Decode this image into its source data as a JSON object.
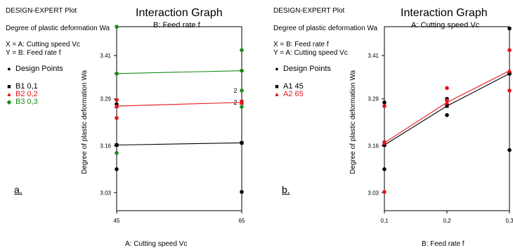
{
  "chart_data": [
    {
      "type": "line",
      "panel_tag": "a.",
      "software": "DESIGN-EXPERT Plot",
      "response": "Degree of plastic deformation Wa",
      "x_assign": "X = A: Cutting speed Vc",
      "y_assign": "Y = B: Feed rate f",
      "design_points_label": "Design Points",
      "title": "Interaction Graph",
      "subtitle": "B: Feed rate f",
      "xlabel": "A: Cutting speed Vc",
      "ylabel": "Degree of plastic deformation Wa",
      "x": [
        45,
        65
      ],
      "xticks": [
        "45",
        "65"
      ],
      "xlim": [
        45,
        65
      ],
      "ylim": [
        2.98,
        3.49
      ],
      "yticks": [
        "3.03",
        "3.16",
        "3.29",
        "3.41"
      ],
      "ytick_values": [
        3.03,
        3.16,
        3.29,
        3.41
      ],
      "series": [
        {
          "name": "B1 0,1",
          "color": "#000000",
          "marker": "square",
          "values": [
            3.162,
            3.168
          ],
          "points": [
            {
              "x": 45,
              "y": 3.162
            },
            {
              "x": 45,
              "y": 3.095
            },
            {
              "x": 45,
              "y": 3.275
            },
            {
              "x": 65,
              "y": 3.168
            },
            {
              "x": 65,
              "y": 3.032
            }
          ]
        },
        {
          "name": "B2 0,2",
          "color": "#e4151c",
          "marker": "triangle",
          "values": [
            3.27,
            3.28
          ],
          "points": [
            {
              "x": 45,
              "y": 3.287
            },
            {
              "x": 45,
              "y": 3.237
            },
            {
              "x": 65,
              "y": 3.283
            }
          ]
        },
        {
          "name": "B3 0,3",
          "color": "#1a8a1a",
          "marker": "diamond",
          "values": [
            3.36,
            3.368
          ],
          "points": [
            {
              "x": 45,
              "y": 3.36
            },
            {
              "x": 45,
              "y": 3.14
            },
            {
              "x": 45,
              "y": 3.49
            },
            {
              "x": 65,
              "y": 3.368
            },
            {
              "x": 65,
              "y": 3.425
            },
            {
              "x": 65,
              "y": 3.313
            },
            {
              "x": 65,
              "y": 3.268
            }
          ]
        }
      ],
      "annotations": [
        {
          "text": "2",
          "x": 65,
          "y": 3.313
        },
        {
          "text": "2",
          "x": 65,
          "y": 3.28
        }
      ],
      "legend_position": "left"
    },
    {
      "type": "line",
      "panel_tag": "b.",
      "software": "DESIGN-EXPERT Plot",
      "response": "Degree of plastic deformation Wa",
      "x_assign": "X = B: Feed rate f",
      "y_assign": "Y = A: Cutting speed Vc",
      "design_points_label": "Design Points",
      "title": "Interaction Graph",
      "subtitle": "A: Cutting speed Vc",
      "xlabel": "B: Feed rate f",
      "ylabel": "Degree of plastic deformation Wa",
      "x": [
        0.1,
        0.2,
        0.3
      ],
      "xticks": [
        "0,1",
        "0,2",
        "0,3"
      ],
      "xlim": [
        0.1,
        0.3
      ],
      "ylim": [
        2.98,
        3.49
      ],
      "yticks": [
        "3.03",
        "3.16",
        "3.29",
        "3.41"
      ],
      "ytick_values": [
        3.03,
        3.16,
        3.29,
        3.41
      ],
      "series": [
        {
          "name": "A1 45",
          "color": "#000000",
          "marker": "square",
          "values": [
            3.162,
            3.27,
            3.36
          ],
          "points": [
            {
              "x": 0.1,
              "y": 3.162
            },
            {
              "x": 0.1,
              "y": 3.095
            },
            {
              "x": 0.1,
              "y": 3.28
            },
            {
              "x": 0.2,
              "y": 3.29
            },
            {
              "x": 0.2,
              "y": 3.245
            },
            {
              "x": 0.3,
              "y": 3.485
            },
            {
              "x": 0.3,
              "y": 3.148
            },
            {
              "x": 0.3,
              "y": 3.36
            }
          ]
        },
        {
          "name": "A2 65",
          "color": "#e4151c",
          "marker": "triangle",
          "values": [
            3.168,
            3.28,
            3.368
          ],
          "points": [
            {
              "x": 0.1,
              "y": 3.17
            },
            {
              "x": 0.1,
              "y": 3.032
            },
            {
              "x": 0.1,
              "y": 3.27
            },
            {
              "x": 0.2,
              "y": 3.32
            },
            {
              "x": 0.2,
              "y": 3.285
            },
            {
              "x": 0.3,
              "y": 3.425
            },
            {
              "x": 0.3,
              "y": 3.313
            }
          ]
        }
      ],
      "legend_position": "left"
    }
  ]
}
